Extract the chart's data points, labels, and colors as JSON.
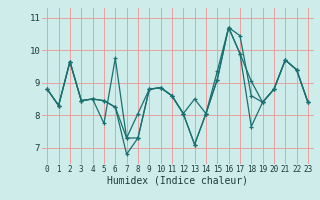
{
  "title": "",
  "xlabel": "Humidex (Indice chaleur)",
  "ylabel": "",
  "bg_color": "#ceecea",
  "grid_color_h": "#e8a0a0",
  "grid_color_v": "#e8a0a0",
  "line_color": "#1a7070",
  "xlim": [
    -0.5,
    23.5
  ],
  "ylim": [
    6.5,
    11.3
  ],
  "yticks": [
    7,
    8,
    9,
    10,
    11
  ],
  "xticks": [
    0,
    1,
    2,
    3,
    4,
    5,
    6,
    7,
    8,
    9,
    10,
    11,
    12,
    13,
    14,
    15,
    16,
    17,
    18,
    19,
    20,
    21,
    22,
    23
  ],
  "series": [
    [
      8.8,
      8.3,
      9.65,
      8.45,
      8.5,
      7.75,
      9.75,
      7.3,
      8.05,
      8.8,
      8.85,
      8.6,
      8.05,
      8.5,
      8.05,
      9.1,
      10.7,
      10.45,
      8.6,
      8.4,
      8.8,
      9.7,
      9.4,
      8.4
    ],
    [
      8.8,
      8.3,
      9.65,
      8.45,
      8.5,
      8.45,
      8.25,
      7.3,
      7.3,
      8.8,
      8.85,
      8.6,
      8.05,
      7.1,
      8.05,
      9.1,
      10.7,
      9.9,
      9.05,
      8.4,
      8.8,
      9.7,
      9.4,
      8.4
    ],
    [
      8.8,
      8.3,
      9.65,
      8.45,
      8.5,
      8.45,
      8.25,
      6.8,
      7.3,
      8.8,
      8.85,
      8.6,
      8.05,
      7.1,
      8.05,
      9.35,
      10.7,
      9.9,
      7.65,
      8.4,
      8.8,
      9.7,
      9.4,
      8.4
    ]
  ],
  "xlabel_fontsize": 7,
  "tick_fontsize_x": 5.5,
  "tick_fontsize_y": 6.5
}
